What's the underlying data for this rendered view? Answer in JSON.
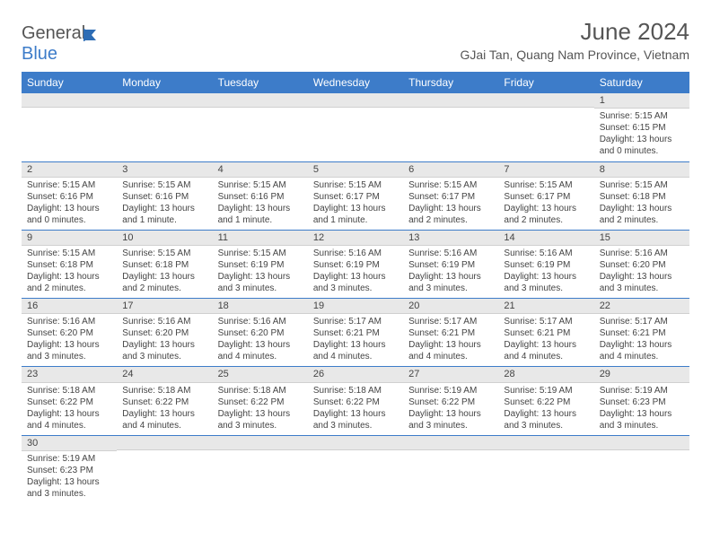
{
  "logo": {
    "text1": "General",
    "text2": "Blue"
  },
  "title": "June 2024",
  "location": "GJai Tan, Quang Nam Province, Vietnam",
  "headers": [
    "Sunday",
    "Monday",
    "Tuesday",
    "Wednesday",
    "Thursday",
    "Friday",
    "Saturday"
  ],
  "colors": {
    "header_bg": "#3d7cc9",
    "header_fg": "#ffffff",
    "daynum_bg": "#e8e8e8",
    "row_border": "#3d7cc9",
    "text": "#444444"
  },
  "weeks": [
    [
      null,
      null,
      null,
      null,
      null,
      null,
      {
        "d": "1",
        "sr": "5:15 AM",
        "ss": "6:15 PM",
        "dl": "13 hours and 0 minutes."
      }
    ],
    [
      {
        "d": "2",
        "sr": "5:15 AM",
        "ss": "6:16 PM",
        "dl": "13 hours and 0 minutes."
      },
      {
        "d": "3",
        "sr": "5:15 AM",
        "ss": "6:16 PM",
        "dl": "13 hours and 1 minute."
      },
      {
        "d": "4",
        "sr": "5:15 AM",
        "ss": "6:16 PM",
        "dl": "13 hours and 1 minute."
      },
      {
        "d": "5",
        "sr": "5:15 AM",
        "ss": "6:17 PM",
        "dl": "13 hours and 1 minute."
      },
      {
        "d": "6",
        "sr": "5:15 AM",
        "ss": "6:17 PM",
        "dl": "13 hours and 2 minutes."
      },
      {
        "d": "7",
        "sr": "5:15 AM",
        "ss": "6:17 PM",
        "dl": "13 hours and 2 minutes."
      },
      {
        "d": "8",
        "sr": "5:15 AM",
        "ss": "6:18 PM",
        "dl": "13 hours and 2 minutes."
      }
    ],
    [
      {
        "d": "9",
        "sr": "5:15 AM",
        "ss": "6:18 PM",
        "dl": "13 hours and 2 minutes."
      },
      {
        "d": "10",
        "sr": "5:15 AM",
        "ss": "6:18 PM",
        "dl": "13 hours and 2 minutes."
      },
      {
        "d": "11",
        "sr": "5:15 AM",
        "ss": "6:19 PM",
        "dl": "13 hours and 3 minutes."
      },
      {
        "d": "12",
        "sr": "5:16 AM",
        "ss": "6:19 PM",
        "dl": "13 hours and 3 minutes."
      },
      {
        "d": "13",
        "sr": "5:16 AM",
        "ss": "6:19 PM",
        "dl": "13 hours and 3 minutes."
      },
      {
        "d": "14",
        "sr": "5:16 AM",
        "ss": "6:19 PM",
        "dl": "13 hours and 3 minutes."
      },
      {
        "d": "15",
        "sr": "5:16 AM",
        "ss": "6:20 PM",
        "dl": "13 hours and 3 minutes."
      }
    ],
    [
      {
        "d": "16",
        "sr": "5:16 AM",
        "ss": "6:20 PM",
        "dl": "13 hours and 3 minutes."
      },
      {
        "d": "17",
        "sr": "5:16 AM",
        "ss": "6:20 PM",
        "dl": "13 hours and 3 minutes."
      },
      {
        "d": "18",
        "sr": "5:16 AM",
        "ss": "6:20 PM",
        "dl": "13 hours and 4 minutes."
      },
      {
        "d": "19",
        "sr": "5:17 AM",
        "ss": "6:21 PM",
        "dl": "13 hours and 4 minutes."
      },
      {
        "d": "20",
        "sr": "5:17 AM",
        "ss": "6:21 PM",
        "dl": "13 hours and 4 minutes."
      },
      {
        "d": "21",
        "sr": "5:17 AM",
        "ss": "6:21 PM",
        "dl": "13 hours and 4 minutes."
      },
      {
        "d": "22",
        "sr": "5:17 AM",
        "ss": "6:21 PM",
        "dl": "13 hours and 4 minutes."
      }
    ],
    [
      {
        "d": "23",
        "sr": "5:18 AM",
        "ss": "6:22 PM",
        "dl": "13 hours and 4 minutes."
      },
      {
        "d": "24",
        "sr": "5:18 AM",
        "ss": "6:22 PM",
        "dl": "13 hours and 4 minutes."
      },
      {
        "d": "25",
        "sr": "5:18 AM",
        "ss": "6:22 PM",
        "dl": "13 hours and 3 minutes."
      },
      {
        "d": "26",
        "sr": "5:18 AM",
        "ss": "6:22 PM",
        "dl": "13 hours and 3 minutes."
      },
      {
        "d": "27",
        "sr": "5:19 AM",
        "ss": "6:22 PM",
        "dl": "13 hours and 3 minutes."
      },
      {
        "d": "28",
        "sr": "5:19 AM",
        "ss": "6:22 PM",
        "dl": "13 hours and 3 minutes."
      },
      {
        "d": "29",
        "sr": "5:19 AM",
        "ss": "6:23 PM",
        "dl": "13 hours and 3 minutes."
      }
    ],
    [
      {
        "d": "30",
        "sr": "5:19 AM",
        "ss": "6:23 PM",
        "dl": "13 hours and 3 minutes."
      },
      null,
      null,
      null,
      null,
      null,
      null
    ]
  ],
  "labels": {
    "sunrise": "Sunrise: ",
    "sunset": "Sunset: ",
    "daylight": "Daylight: "
  }
}
